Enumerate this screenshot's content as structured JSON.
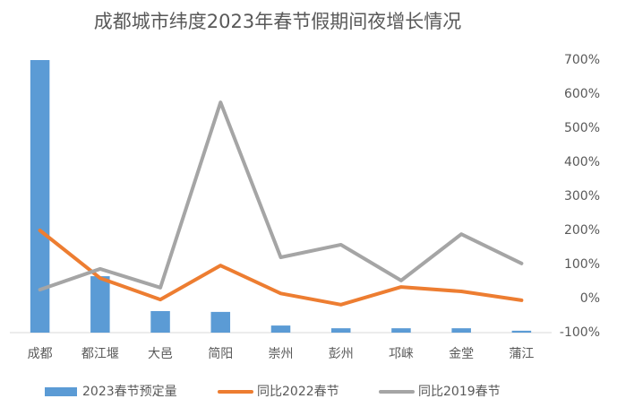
{
  "chart_data": {
    "type": "bar-line",
    "title": "成都城市纬度2023年春节假期间夜增长情况",
    "categories": [
      "成都",
      "都江堰",
      "大邑",
      "简阳",
      "崇州",
      "彭州",
      "邛崃",
      "金堂",
      "蒲江"
    ],
    "ylim": [
      0,
      100
    ],
    "y2lim": [
      -100,
      700
    ],
    "y2ticks": [
      {
        "value": 700,
        "label": "700%"
      },
      {
        "value": 600,
        "label": "600%"
      },
      {
        "value": 500,
        "label": "500%"
      },
      {
        "value": 400,
        "label": "400%"
      },
      {
        "value": 300,
        "label": "300%"
      },
      {
        "value": 200,
        "label": "200%"
      },
      {
        "value": 100,
        "label": "100%"
      },
      {
        "value": 0,
        "label": "0%"
      },
      {
        "value": -100,
        "label": "-100%"
      }
    ],
    "series": [
      {
        "name": "2023春节预定量",
        "type": "bar",
        "color": "#5b9bd5",
        "values": [
          100,
          20.7,
          7.9,
          7.6,
          2.6,
          1.6,
          1.6,
          1.6,
          0.7
        ]
      },
      {
        "name": "同比2022春节",
        "type": "line",
        "axis": "y2",
        "color": "#ed7d31",
        "values": [
          200,
          60,
          -3,
          97,
          15,
          -18,
          34,
          21,
          -5
        ]
      },
      {
        "name": "同比2019春节",
        "type": "line",
        "axis": "y2",
        "color": "#a5a5a5",
        "values": [
          26,
          87,
          32,
          576,
          121,
          158,
          53,
          189,
          103
        ]
      }
    ]
  }
}
